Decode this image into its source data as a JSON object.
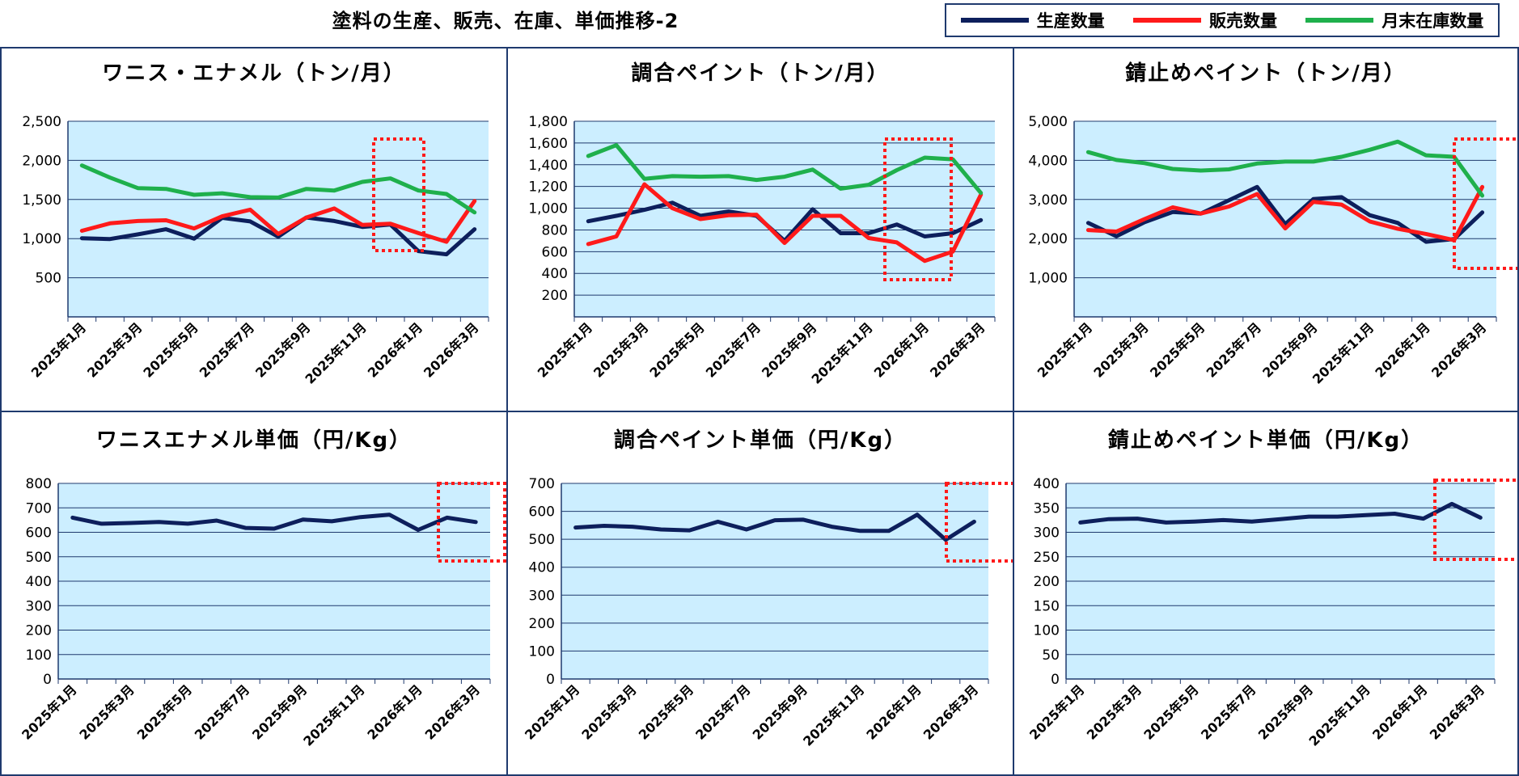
{
  "page": {
    "title": "塗料の生産、販売、在庫、単価推移-2"
  },
  "legend": [
    {
      "name": "生産数量",
      "color": "#0d1f5c"
    },
    {
      "name": "販売数量",
      "color": "#ff1a1a"
    },
    {
      "name": "月末在庫数量",
      "color": "#1fb04c"
    }
  ],
  "colors": {
    "plot_bg": "#cceeff",
    "border": "#1f3a6e",
    "gridline": "#1f3a6e",
    "highlight_box": "#ff1a1a"
  },
  "chart_data": [
    {
      "type": "line",
      "title": "ワニス・エナメル（トン/月）",
      "categories": [
        "2025年1月",
        "2025年2月",
        "2025年3月",
        "2025年4月",
        "2025年5月",
        "2025年6月",
        "2025年7月",
        "2025年8月",
        "2025年9月",
        "2025年10月",
        "2025年11月",
        "2025年12月",
        "2026年1月",
        "2026年2月",
        "2026年3月"
      ],
      "tick_labels": [
        "2025年1月",
        "2025年3月",
        "2025年5月",
        "2025年7月",
        "2025年9月",
        "2025年11月",
        "2026年1月",
        "2026年3月"
      ],
      "ylim": [
        0,
        2500
      ],
      "yticks": [
        "500",
        "1,000",
        "1,500",
        "2,000",
        "2,500"
      ],
      "ytick_values": [
        500,
        1000,
        1500,
        2000,
        2500
      ],
      "series": [
        {
          "name": "生産数量",
          "values": [
            1005,
            995,
            1055,
            1120,
            1000,
            1265,
            1220,
            1025,
            1270,
            1225,
            1150,
            1180,
            840,
            800,
            1120
          ]
        },
        {
          "name": "販売数量",
          "values": [
            1100,
            1195,
            1225,
            1235,
            1130,
            1285,
            1370,
            1060,
            1270,
            1385,
            1175,
            1190,
            1070,
            960,
            1480
          ]
        },
        {
          "name": "月末在庫数量",
          "values": [
            1935,
            1780,
            1645,
            1635,
            1560,
            1580,
            1530,
            1525,
            1635,
            1615,
            1725,
            1770,
            1615,
            1570,
            1335
          ]
        }
      ],
      "highlight": "last-two-months"
    },
    {
      "type": "line",
      "title": "調合ペイント（トン/月）",
      "categories": [
        "2025年1月",
        "2025年2月",
        "2025年3月",
        "2025年4月",
        "2025年5月",
        "2025年6月",
        "2025年7月",
        "2025年8月",
        "2025年9月",
        "2025年10月",
        "2025年11月",
        "2025年12月",
        "2026年1月",
        "2026年2月",
        "2026年3月"
      ],
      "tick_labels": [
        "2025年1月",
        "2025年3月",
        "2025年5月",
        "2025年7月",
        "2025年9月",
        "2025年11月",
        "2026年1月",
        "2026年3月"
      ],
      "ylim": [
        0,
        1800
      ],
      "yticks": [
        "200",
        "400",
        "600",
        "800",
        "1,000",
        "1,200",
        "1,400",
        "1,600",
        "1,800"
      ],
      "ytick_values": [
        200,
        400,
        600,
        800,
        1000,
        1200,
        1400,
        1600,
        1800
      ],
      "series": [
        {
          "name": "生産数量",
          "values": [
            880,
            930,
            985,
            1050,
            930,
            970,
            930,
            700,
            990,
            770,
            770,
            850,
            740,
            770,
            890
          ]
        },
        {
          "name": "販売数量",
          "values": [
            670,
            740,
            1220,
            1000,
            900,
            935,
            940,
            680,
            930,
            930,
            725,
            685,
            515,
            600,
            1125
          ]
        },
        {
          "name": "月末在庫数量",
          "values": [
            1480,
            1580,
            1270,
            1295,
            1290,
            1295,
            1260,
            1290,
            1355,
            1180,
            1215,
            1350,
            1465,
            1450,
            1140
          ]
        }
      ],
      "highlight": "last-two-months"
    },
    {
      "type": "line",
      "title": "錆止めペイント（トン/月）",
      "categories": [
        "2025年1月",
        "2025年2月",
        "2025年3月",
        "2025年4月",
        "2025年5月",
        "2025年6月",
        "2025年7月",
        "2025年8月",
        "2025年9月",
        "2025年10月",
        "2025年11月",
        "2025年12月",
        "2026年1月",
        "2026年2月",
        "2026年3月"
      ],
      "tick_labels": [
        "2025年1月",
        "2025年3月",
        "2025年5月",
        "2025年7月",
        "2025年9月",
        "2025年11月",
        "2026年1月",
        "2026年3月"
      ],
      "ylim": [
        0,
        5000
      ],
      "yticks": [
        "1,000",
        "2,000",
        "3,000",
        "4,000",
        "5,000"
      ],
      "ytick_values": [
        1000,
        2000,
        3000,
        4000,
        5000
      ],
      "series": [
        {
          "name": "生産数量",
          "values": [
            2400,
            2060,
            2420,
            2680,
            2640,
            2980,
            3320,
            2370,
            3010,
            3060,
            2600,
            2400,
            1920,
            1990,
            2670
          ]
        },
        {
          "name": "販売数量",
          "values": [
            2220,
            2180,
            2500,
            2800,
            2640,
            2820,
            3140,
            2260,
            2940,
            2870,
            2440,
            2250,
            2120,
            1960,
            3320
          ]
        },
        {
          "name": "月末在庫数量",
          "values": [
            4210,
            4010,
            3930,
            3780,
            3740,
            3770,
            3920,
            3970,
            3970,
            4090,
            4270,
            4480,
            4130,
            4090,
            3100
          ]
        }
      ],
      "highlight": "last-two-months"
    },
    {
      "type": "line",
      "title": "ワニスエナメル単価（円/Kg）",
      "categories": [
        "2025年1月",
        "2025年2月",
        "2025年3月",
        "2025年4月",
        "2025年5月",
        "2025年6月",
        "2025年7月",
        "2025年8月",
        "2025年9月",
        "2025年10月",
        "2025年11月",
        "2025年12月",
        "2026年1月",
        "2026年2月",
        "2026年3月"
      ],
      "tick_labels": [
        "2025年1月",
        "2025年3月",
        "2025年5月",
        "2025年7月",
        "2025年9月",
        "2025年11月",
        "2026年1月",
        "2026年3月"
      ],
      "ylim": [
        0,
        800
      ],
      "yticks": [
        "0",
        "100",
        "200",
        "300",
        "400",
        "500",
        "600",
        "700",
        "800"
      ],
      "ytick_values": [
        0,
        100,
        200,
        300,
        400,
        500,
        600,
        700,
        800
      ],
      "series": [
        {
          "name": "生産数量",
          "values": [
            660,
            635,
            638,
            642,
            635,
            648,
            618,
            615,
            652,
            645,
            662,
            672,
            610,
            660,
            642
          ]
        }
      ],
      "highlight": "last-two-months"
    },
    {
      "type": "line",
      "title": "調合ペイント単価（円/Kg）",
      "categories": [
        "2025年1月",
        "2025年2月",
        "2025年3月",
        "2025年4月",
        "2025年5月",
        "2025年6月",
        "2025年7月",
        "2025年8月",
        "2025年9月",
        "2025年10月",
        "2025年11月",
        "2025年12月",
        "2026年1月",
        "2026年2月",
        "2026年3月"
      ],
      "tick_labels": [
        "2025年1月",
        "2025年3月",
        "2025年5月",
        "2025年7月",
        "2025年9月",
        "2025年11月",
        "2026年1月",
        "2026年3月"
      ],
      "ylim": [
        0,
        700
      ],
      "yticks": [
        "0",
        "100",
        "200",
        "300",
        "400",
        "500",
        "600",
        "700"
      ],
      "ytick_values": [
        0,
        100,
        200,
        300,
        400,
        500,
        600,
        700
      ],
      "series": [
        {
          "name": "生産数量",
          "values": [
            542,
            548,
            545,
            535,
            532,
            563,
            535,
            568,
            570,
            545,
            530,
            530,
            588,
            498,
            563
          ]
        }
      ],
      "highlight": "last-two-months"
    },
    {
      "type": "line",
      "title": "錆止めペイント単価（円/Kg）",
      "categories": [
        "2025年1月",
        "2025年2月",
        "2025年3月",
        "2025年4月",
        "2025年5月",
        "2025年6月",
        "2025年7月",
        "2025年8月",
        "2025年9月",
        "2025年10月",
        "2025年11月",
        "2025年12月",
        "2026年1月",
        "2026年2月",
        "2026年3月"
      ],
      "tick_labels": [
        "2025年1月",
        "2025年3月",
        "2025年5月",
        "2025年7月",
        "2025年9月",
        "2025年11月",
        "2026年1月",
        "2026年3月"
      ],
      "ylim": [
        0,
        400
      ],
      "yticks": [
        "0",
        "50",
        "100",
        "150",
        "200",
        "250",
        "300",
        "350",
        "400"
      ],
      "ytick_values": [
        0,
        50,
        100,
        150,
        200,
        250,
        300,
        350,
        400
      ],
      "series": [
        {
          "name": "生産数量",
          "values": [
            320,
            327,
            328,
            320,
            322,
            325,
            322,
            327,
            332,
            332,
            335,
            338,
            328,
            358,
            330
          ]
        }
      ],
      "highlight": "last-two-months"
    }
  ]
}
